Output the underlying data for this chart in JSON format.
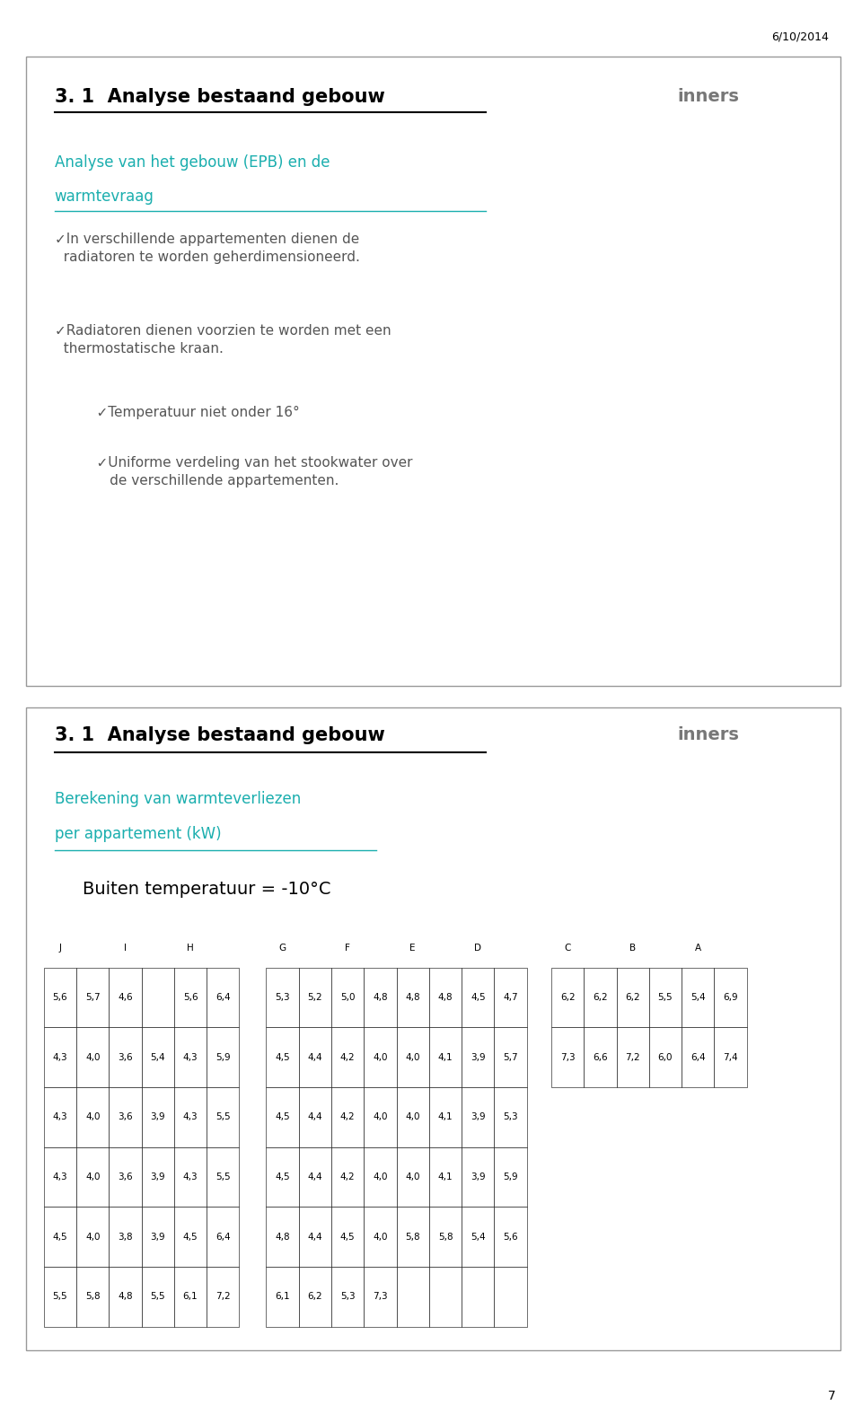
{
  "date_text": "6/10/2014",
  "page_number": "7",
  "teal": "#1AAEAE",
  "black": "#1a1a1a",
  "gray": "#555555",
  "slide1": {
    "title": "3. 1  Analyse bestaand gebouw",
    "subtitle_line1": "Analyse van het gebouw (EPB) en de",
    "subtitle_line2": "warmtevraag",
    "bullet1": "✓In verschillende appartementen dienen de\n  radiatoren te worden geherdimensioneerd.",
    "bullet2": "✓Radiatoren dienen voorzien te worden met een\n  thermostatische kraan.",
    "bullet3": "    ✓Temperatuur niet onder 16°",
    "bullet4": "    ✓Uniforme verdeling van het stookwater over\n       de verschillende appartementen."
  },
  "slide2": {
    "title": "3. 1  Analyse bestaand gebouw",
    "subtitle_line1": "Berekening van warmteverliezen",
    "subtitle_line2": "per appartement (kW)",
    "temp_text": "Buiten temperatuur = -10°C",
    "table_JIH_headers": [
      "J",
      "I",
      "H"
    ],
    "table_JIH_header_cols": [
      0,
      2,
      4
    ],
    "table_JIH_rows": [
      [
        "5,6",
        "5,7",
        "4,6",
        "",
        "5,6",
        "6,4"
      ],
      [
        "4,3",
        "4,0",
        "3,6",
        "5,4",
        "4,3",
        "5,9"
      ],
      [
        "4,3",
        "4,0",
        "3,6",
        "3,9",
        "4,3",
        "5,5"
      ],
      [
        "4,3",
        "4,0",
        "3,6",
        "3,9",
        "4,3",
        "5,5"
      ],
      [
        "4,5",
        "4,0",
        "3,8",
        "3,9",
        "4,5",
        "6,4"
      ],
      [
        "5,5",
        "5,8",
        "4,8",
        "5,5",
        "6,1",
        "7,2"
      ]
    ],
    "table_GFED_headers": [
      "G",
      "F",
      "E",
      "D"
    ],
    "table_GFED_header_cols": [
      0,
      2,
      4,
      6
    ],
    "table_GFED_rows": [
      [
        "5,3",
        "5,2",
        "5,0",
        "4,8",
        "4,8",
        "4,8",
        "4,5",
        "4,7"
      ],
      [
        "4,5",
        "4,4",
        "4,2",
        "4,0",
        "4,0",
        "4,1",
        "3,9",
        "5,7"
      ],
      [
        "4,5",
        "4,4",
        "4,2",
        "4,0",
        "4,0",
        "4,1",
        "3,9",
        "5,3"
      ],
      [
        "4,5",
        "4,4",
        "4,2",
        "4,0",
        "4,0",
        "4,1",
        "3,9",
        "5,9"
      ],
      [
        "4,8",
        "4,4",
        "4,5",
        "4,0",
        "5,8",
        "5,8",
        "5,4",
        "5,6"
      ],
      [
        "6,1",
        "6,2",
        "5,3",
        "7,3",
        "",
        "",
        "",
        ""
      ]
    ],
    "table_CBA_headers": [
      "C",
      "B",
      "A"
    ],
    "table_CBA_header_cols": [
      0,
      2,
      4
    ],
    "table_CBA_rows": [
      [
        "6,2",
        "6,2",
        "6,2",
        "5,5",
        "5,4",
        "6,9"
      ],
      [
        "7,3",
        "6,6",
        "7,2",
        "6,0",
        "6,4",
        "7,4"
      ]
    ]
  }
}
